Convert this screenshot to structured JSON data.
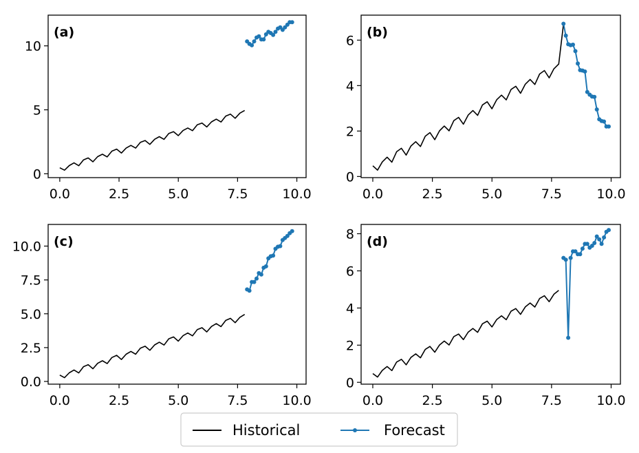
{
  "chart_data": [
    {
      "type": "line",
      "panel_label": "(a)",
      "xlim": [
        -0.49,
        10.39
      ],
      "ylim": [
        -0.3,
        12.4
      ],
      "xticks": [
        0.0,
        2.5,
        5.0,
        7.5,
        10.0
      ],
      "xtick_labels": [
        "0.0",
        "2.5",
        "5.0",
        "7.5",
        "10.0"
      ],
      "yticks": [
        0,
        5,
        10
      ],
      "ytick_labels": [
        "0",
        "5",
        "10"
      ],
      "series": [
        {
          "name": "Historical",
          "color": "#000000",
          "x": [
            0.0,
            0.2,
            0.4,
            0.6,
            0.8,
            1.0,
            1.2,
            1.4,
            1.6,
            1.8,
            2.0,
            2.2,
            2.4,
            2.6,
            2.8,
            3.0,
            3.2,
            3.4,
            3.6,
            3.8,
            4.0,
            4.2,
            4.4,
            4.6,
            4.8,
            5.0,
            5.2,
            5.4,
            5.6,
            5.8,
            6.0,
            6.2,
            6.4,
            6.6,
            6.8,
            7.0,
            7.2,
            7.4,
            7.6,
            7.8
          ],
          "y": [
            0.47,
            0.28,
            0.64,
            0.85,
            0.63,
            1.09,
            1.24,
            0.94,
            1.34,
            1.53,
            1.32,
            1.77,
            1.93,
            1.62,
            2.01,
            2.22,
            2.01,
            2.46,
            2.6,
            2.3,
            2.7,
            2.9,
            2.69,
            3.15,
            3.29,
            2.98,
            3.38,
            3.58,
            3.37,
            3.83,
            3.97,
            3.66,
            4.06,
            4.27,
            4.05,
            4.51,
            4.66,
            4.34,
            4.74,
            4.95
          ]
        },
        {
          "name": "Forecast",
          "color": "#1f77b4",
          "x": [
            7.9,
            8.0,
            8.1,
            8.2,
            8.3,
            8.4,
            8.5,
            8.6,
            8.7,
            8.8,
            8.9,
            9.0,
            9.1,
            9.2,
            9.3,
            9.4,
            9.5,
            9.6,
            9.7,
            9.8
          ],
          "y": [
            10.35,
            10.15,
            10.05,
            10.35,
            10.65,
            10.75,
            10.5,
            10.5,
            10.9,
            11.1,
            11.0,
            10.85,
            11.1,
            11.35,
            11.45,
            11.25,
            11.45,
            11.65,
            11.85,
            11.85
          ]
        }
      ]
    },
    {
      "type": "line",
      "panel_label": "(b)",
      "xlim": [
        -0.49,
        10.39
      ],
      "ylim": [
        -0.05,
        7.1
      ],
      "xticks": [
        0.0,
        2.5,
        5.0,
        7.5,
        10.0
      ],
      "xtick_labels": [
        "0.0",
        "2.5",
        "5.0",
        "7.5",
        "10.0"
      ],
      "yticks": [
        0,
        2,
        4,
        6
      ],
      "ytick_labels": [
        "0",
        "2",
        "4",
        "6"
      ],
      "series": [
        {
          "name": "Historical",
          "color": "#000000",
          "x": [
            0.0,
            0.2,
            0.4,
            0.6,
            0.8,
            1.0,
            1.2,
            1.4,
            1.6,
            1.8,
            2.0,
            2.2,
            2.4,
            2.6,
            2.8,
            3.0,
            3.2,
            3.4,
            3.6,
            3.8,
            4.0,
            4.2,
            4.4,
            4.6,
            4.8,
            5.0,
            5.2,
            5.4,
            5.6,
            5.8,
            6.0,
            6.2,
            6.4,
            6.6,
            6.8,
            7.0,
            7.2,
            7.4,
            7.6,
            7.8,
            8.0
          ],
          "y": [
            0.47,
            0.28,
            0.64,
            0.85,
            0.63,
            1.09,
            1.24,
            0.94,
            1.34,
            1.53,
            1.32,
            1.77,
            1.93,
            1.62,
            2.01,
            2.22,
            2.01,
            2.46,
            2.6,
            2.3,
            2.7,
            2.9,
            2.69,
            3.15,
            3.29,
            2.98,
            3.38,
            3.58,
            3.37,
            3.83,
            3.97,
            3.66,
            4.06,
            4.27,
            4.05,
            4.51,
            4.66,
            4.34,
            4.74,
            4.95,
            6.7
          ]
        },
        {
          "name": "Forecast",
          "color": "#1f77b4",
          "x": [
            8.0,
            8.1,
            8.2,
            8.3,
            8.4,
            8.5,
            8.6,
            8.7,
            8.8,
            8.9,
            9.0,
            9.1,
            9.2,
            9.3,
            9.4,
            9.5,
            9.6,
            9.7,
            9.8,
            9.9
          ],
          "y": [
            6.72,
            6.2,
            5.82,
            5.78,
            5.8,
            5.52,
            4.97,
            4.68,
            4.66,
            4.62,
            3.72,
            3.6,
            3.52,
            3.5,
            2.95,
            2.52,
            2.44,
            2.42,
            2.2,
            2.2
          ]
        }
      ]
    },
    {
      "type": "line",
      "panel_label": "(c)",
      "xlim": [
        -0.49,
        10.39
      ],
      "ylim": [
        -0.2,
        11.6
      ],
      "xticks": [
        0.0,
        2.5,
        5.0,
        7.5,
        10.0
      ],
      "xtick_labels": [
        "0.0",
        "2.5",
        "5.0",
        "7.5",
        "10.0"
      ],
      "yticks": [
        0.0,
        2.5,
        5.0,
        7.5,
        10.0
      ],
      "ytick_labels": [
        "0.0",
        "2.5",
        "5.0",
        "7.5",
        "10.0"
      ],
      "series": [
        {
          "name": "Historical",
          "color": "#000000",
          "x": [
            0.0,
            0.2,
            0.4,
            0.6,
            0.8,
            1.0,
            1.2,
            1.4,
            1.6,
            1.8,
            2.0,
            2.2,
            2.4,
            2.6,
            2.8,
            3.0,
            3.2,
            3.4,
            3.6,
            3.8,
            4.0,
            4.2,
            4.4,
            4.6,
            4.8,
            5.0,
            5.2,
            5.4,
            5.6,
            5.8,
            6.0,
            6.2,
            6.4,
            6.6,
            6.8,
            7.0,
            7.2,
            7.4,
            7.6,
            7.8
          ],
          "y": [
            0.47,
            0.28,
            0.64,
            0.85,
            0.63,
            1.09,
            1.24,
            0.94,
            1.34,
            1.53,
            1.32,
            1.77,
            1.93,
            1.62,
            2.01,
            2.22,
            2.01,
            2.46,
            2.6,
            2.3,
            2.7,
            2.9,
            2.69,
            3.15,
            3.29,
            2.98,
            3.38,
            3.58,
            3.37,
            3.83,
            3.97,
            3.66,
            4.06,
            4.27,
            4.05,
            4.51,
            4.66,
            4.34,
            4.74,
            4.95
          ]
        },
        {
          "name": "Forecast",
          "color": "#1f77b4",
          "x": [
            7.9,
            8.0,
            8.1,
            8.2,
            8.3,
            8.4,
            8.5,
            8.6,
            8.7,
            8.8,
            8.9,
            9.0,
            9.1,
            9.2,
            9.3,
            9.4,
            9.5,
            9.6,
            9.7,
            9.8
          ],
          "y": [
            6.8,
            6.7,
            7.35,
            7.35,
            7.6,
            8.0,
            7.9,
            8.4,
            8.5,
            9.1,
            9.25,
            9.3,
            9.8,
            9.95,
            10.0,
            10.45,
            10.6,
            10.75,
            10.95,
            11.1
          ]
        }
      ]
    },
    {
      "type": "line",
      "panel_label": "(d)",
      "xlim": [
        -0.49,
        10.39
      ],
      "ylim": [
        -0.1,
        8.5
      ],
      "xticks": [
        0.0,
        2.5,
        5.0,
        7.5,
        10.0
      ],
      "xtick_labels": [
        "0.0",
        "2.5",
        "5.0",
        "7.5",
        "10.0"
      ],
      "yticks": [
        0,
        2,
        4,
        6,
        8
      ],
      "ytick_labels": [
        "0",
        "2",
        "4",
        "6",
        "8"
      ],
      "series": [
        {
          "name": "Historical",
          "color": "#000000",
          "x": [
            0.0,
            0.2,
            0.4,
            0.6,
            0.8,
            1.0,
            1.2,
            1.4,
            1.6,
            1.8,
            2.0,
            2.2,
            2.4,
            2.6,
            2.8,
            3.0,
            3.2,
            3.4,
            3.6,
            3.8,
            4.0,
            4.2,
            4.4,
            4.6,
            4.8,
            5.0,
            5.2,
            5.4,
            5.6,
            5.8,
            6.0,
            6.2,
            6.4,
            6.6,
            6.8,
            7.0,
            7.2,
            7.4,
            7.6,
            7.8
          ],
          "y": [
            0.47,
            0.28,
            0.64,
            0.85,
            0.63,
            1.09,
            1.24,
            0.94,
            1.34,
            1.53,
            1.32,
            1.77,
            1.93,
            1.62,
            2.01,
            2.22,
            2.01,
            2.46,
            2.6,
            2.3,
            2.7,
            2.9,
            2.69,
            3.15,
            3.29,
            2.98,
            3.38,
            3.58,
            3.37,
            3.83,
            3.97,
            3.66,
            4.06,
            4.27,
            4.05,
            4.51,
            4.66,
            4.34,
            4.74,
            4.95
          ]
        },
        {
          "name": "Forecast",
          "color": "#1f77b4",
          "x": [
            8.0,
            8.1,
            8.2,
            8.3,
            8.4,
            8.5,
            8.6,
            8.7,
            8.8,
            8.9,
            9.0,
            9.1,
            9.2,
            9.3,
            9.4,
            9.5,
            9.6,
            9.7,
            9.8,
            9.9
          ],
          "y": [
            6.7,
            6.6,
            2.4,
            6.7,
            7.05,
            7.05,
            6.9,
            6.9,
            7.2,
            7.45,
            7.45,
            7.25,
            7.35,
            7.5,
            7.85,
            7.7,
            7.45,
            7.8,
            8.1,
            8.2
          ]
        }
      ]
    }
  ],
  "legend": {
    "entries": [
      {
        "label": "Historical",
        "color": "#000000",
        "marker": false
      },
      {
        "label": "Forecast",
        "color": "#1f77b4",
        "marker": true
      }
    ]
  }
}
